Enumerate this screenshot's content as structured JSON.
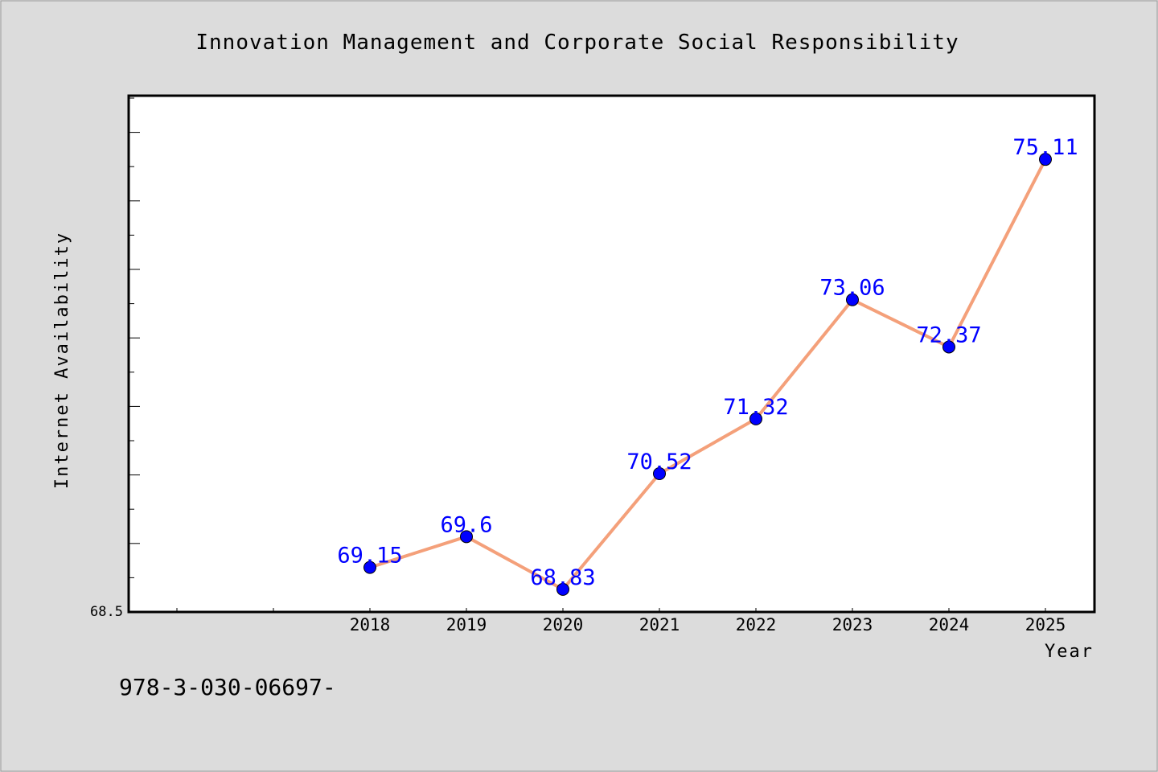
{
  "chart_data": {
    "type": "line",
    "title": "Innovation Management and Corporate Social Responsibility",
    "xlabel": "Year",
    "ylabel": "Internet Availability",
    "categories": [
      "2018",
      "2019",
      "2020",
      "2021",
      "2022",
      "2023",
      "2024",
      "2025"
    ],
    "series": [
      {
        "values": [
          69.15,
          69.6,
          68.83,
          70.52,
          71.32,
          73.06,
          72.37,
          75.11
        ],
        "labels": [
          "69.15",
          "69.6",
          "68.83",
          "70.52",
          "71.32",
          "73.06",
          "72.37",
          "75.11"
        ]
      }
    ],
    "y_tick_labels": [
      "68.5"
    ],
    "ylim": [
      68.5,
      76.04
    ],
    "grid": false,
    "legend": "none",
    "line_color": "#f4a07a",
    "marker_color": "#0000ff"
  },
  "footer": {
    "isbn": "978-3-030-06697-"
  }
}
